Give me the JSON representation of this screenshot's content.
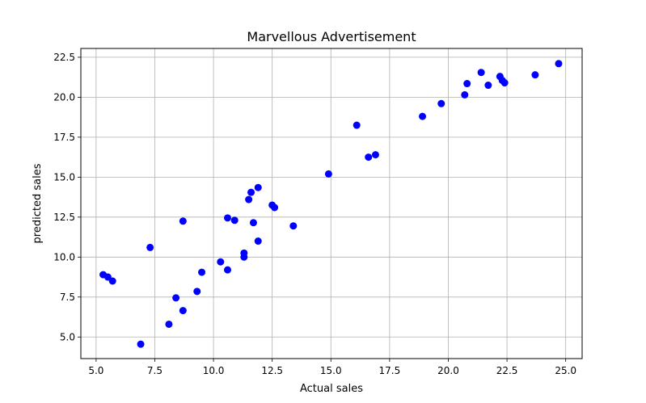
{
  "chart_data": {
    "type": "scatter",
    "title": "Marvellous Advertisement",
    "xlabel": "Actual sales",
    "ylabel": "predicted sales",
    "xlim": [
      4.35,
      25.7
    ],
    "ylim": [
      3.65,
      23.05
    ],
    "xticks": [
      5.0,
      7.5,
      10.0,
      12.5,
      15.0,
      17.5,
      20.0,
      22.5,
      25.0
    ],
    "xtick_labels": [
      "5.0",
      "7.5",
      "10.0",
      "12.5",
      "15.0",
      "17.5",
      "20.0",
      "22.5",
      "25.0"
    ],
    "yticks": [
      5.0,
      7.5,
      10.0,
      12.5,
      15.0,
      17.5,
      20.0,
      22.5
    ],
    "ytick_labels": [
      "5.0",
      "7.5",
      "10.0",
      "12.5",
      "15.0",
      "17.5",
      "20.0",
      "22.5"
    ],
    "grid": true,
    "marker_color": "#0000ff",
    "points": [
      {
        "x": 5.3,
        "y": 8.9
      },
      {
        "x": 5.5,
        "y": 8.75
      },
      {
        "x": 5.7,
        "y": 8.5
      },
      {
        "x": 6.9,
        "y": 4.55
      },
      {
        "x": 7.3,
        "y": 10.6
      },
      {
        "x": 8.1,
        "y": 5.8
      },
      {
        "x": 8.4,
        "y": 7.45
      },
      {
        "x": 8.7,
        "y": 6.65
      },
      {
        "x": 8.7,
        "y": 12.25
      },
      {
        "x": 9.3,
        "y": 7.85
      },
      {
        "x": 9.5,
        "y": 9.05
      },
      {
        "x": 10.3,
        "y": 9.7
      },
      {
        "x": 10.6,
        "y": 9.2
      },
      {
        "x": 10.6,
        "y": 12.45
      },
      {
        "x": 10.9,
        "y": 12.3
      },
      {
        "x": 11.3,
        "y": 10.25
      },
      {
        "x": 11.3,
        "y": 10.0
      },
      {
        "x": 11.5,
        "y": 13.6
      },
      {
        "x": 11.6,
        "y": 14.05
      },
      {
        "x": 11.7,
        "y": 12.15
      },
      {
        "x": 11.9,
        "y": 14.35
      },
      {
        "x": 11.9,
        "y": 11.0
      },
      {
        "x": 12.5,
        "y": 13.25
      },
      {
        "x": 12.6,
        "y": 13.1
      },
      {
        "x": 13.4,
        "y": 11.95
      },
      {
        "x": 14.9,
        "y": 15.2
      },
      {
        "x": 16.1,
        "y": 18.25
      },
      {
        "x": 16.6,
        "y": 16.25
      },
      {
        "x": 16.9,
        "y": 16.4
      },
      {
        "x": 18.9,
        "y": 18.8
      },
      {
        "x": 19.7,
        "y": 19.6
      },
      {
        "x": 20.7,
        "y": 20.15
      },
      {
        "x": 20.8,
        "y": 20.85
      },
      {
        "x": 21.4,
        "y": 21.55
      },
      {
        "x": 21.7,
        "y": 20.75
      },
      {
        "x": 22.2,
        "y": 21.3
      },
      {
        "x": 22.3,
        "y": 21.05
      },
      {
        "x": 22.4,
        "y": 20.9
      },
      {
        "x": 23.7,
        "y": 21.4
      },
      {
        "x": 24.7,
        "y": 22.1
      }
    ]
  }
}
